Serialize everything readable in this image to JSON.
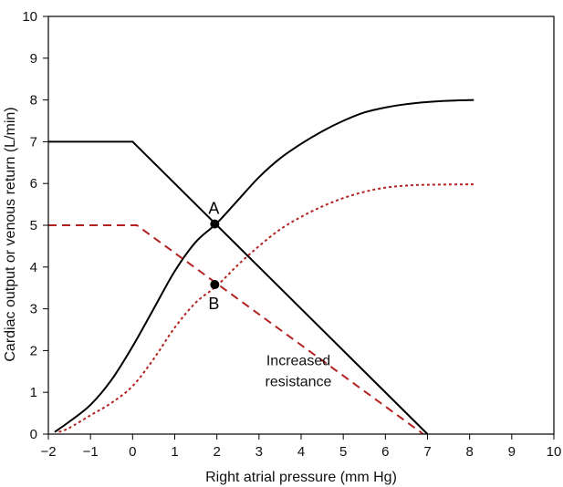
{
  "chart_data": {
    "type": "line",
    "title": "",
    "xlabel": "Right atrial pressure (mm Hg)",
    "ylabel": "Cardiac output or venous return (L/min)",
    "xlim": [
      -2,
      10
    ],
    "ylim": [
      0,
      10
    ],
    "x_ticks": [
      -2,
      -1,
      0,
      1,
      2,
      3,
      4,
      5,
      6,
      7,
      8,
      9,
      10
    ],
    "x_tick_labels": [
      "−2",
      "−1",
      "0",
      "1",
      "2",
      "3",
      "4",
      "5",
      "6",
      "7",
      "8",
      "9",
      "10"
    ],
    "y_ticks": [
      0,
      1,
      2,
      3,
      4,
      5,
      6,
      7,
      8,
      9,
      10
    ],
    "y_tick_labels": [
      "0",
      "1",
      "2",
      "3",
      "4",
      "5",
      "6",
      "7",
      "8",
      "9",
      "10"
    ],
    "grid": false,
    "series": [
      {
        "name": "venous-return-normal",
        "style": "solid",
        "color": "#000000",
        "points": [
          [
            -2,
            7
          ],
          [
            0,
            7
          ],
          [
            7,
            0
          ]
        ]
      },
      {
        "name": "cardiac-output-normal",
        "style": "solid",
        "color": "#000000",
        "points": [
          [
            -1.85,
            0.05
          ],
          [
            -1.5,
            0.3
          ],
          [
            -1,
            0.7
          ],
          [
            -0.5,
            1.3
          ],
          [
            0,
            2.1
          ],
          [
            0.5,
            3.0
          ],
          [
            1,
            3.9
          ],
          [
            1.5,
            4.6
          ],
          [
            2,
            5.05
          ],
          [
            2.5,
            5.6
          ],
          [
            3,
            6.15
          ],
          [
            3.5,
            6.6
          ],
          [
            4,
            6.95
          ],
          [
            4.5,
            7.25
          ],
          [
            5,
            7.5
          ],
          [
            5.5,
            7.7
          ],
          [
            6,
            7.82
          ],
          [
            6.5,
            7.9
          ],
          [
            7,
            7.95
          ],
          [
            7.5,
            7.98
          ],
          [
            8.1,
            8.0
          ]
        ]
      },
      {
        "name": "venous-return-increased-resistance",
        "style": "dashed",
        "color": "#b22222",
        "points": [
          [
            -2,
            5
          ],
          [
            0.1,
            5
          ],
          [
            6.9,
            0
          ]
        ]
      },
      {
        "name": "cardiac-output-depressed",
        "style": "dotted",
        "color": "#b22222",
        "points": [
          [
            -1.75,
            0.05
          ],
          [
            -1.5,
            0.15
          ],
          [
            -1,
            0.45
          ],
          [
            -0.5,
            0.75
          ],
          [
            0,
            1.15
          ],
          [
            0.5,
            1.8
          ],
          [
            1,
            2.55
          ],
          [
            1.5,
            3.15
          ],
          [
            2,
            3.55
          ],
          [
            2.5,
            4.05
          ],
          [
            3,
            4.5
          ],
          [
            3.5,
            4.9
          ],
          [
            4,
            5.2
          ],
          [
            4.5,
            5.45
          ],
          [
            5,
            5.65
          ],
          [
            5.5,
            5.8
          ],
          [
            6,
            5.9
          ],
          [
            6.5,
            5.95
          ],
          [
            7,
            5.97
          ],
          [
            8.1,
            5.98
          ]
        ]
      }
    ],
    "points": [
      {
        "label": "A",
        "x": 1.95,
        "y": 5.03
      },
      {
        "label": "B",
        "x": 1.95,
        "y": 3.58
      }
    ],
    "annotations": [
      {
        "text": "Increased",
        "x": 4.0,
        "y": 1.65
      },
      {
        "text": "resistance",
        "x": 4.0,
        "y": 1.15
      }
    ]
  }
}
